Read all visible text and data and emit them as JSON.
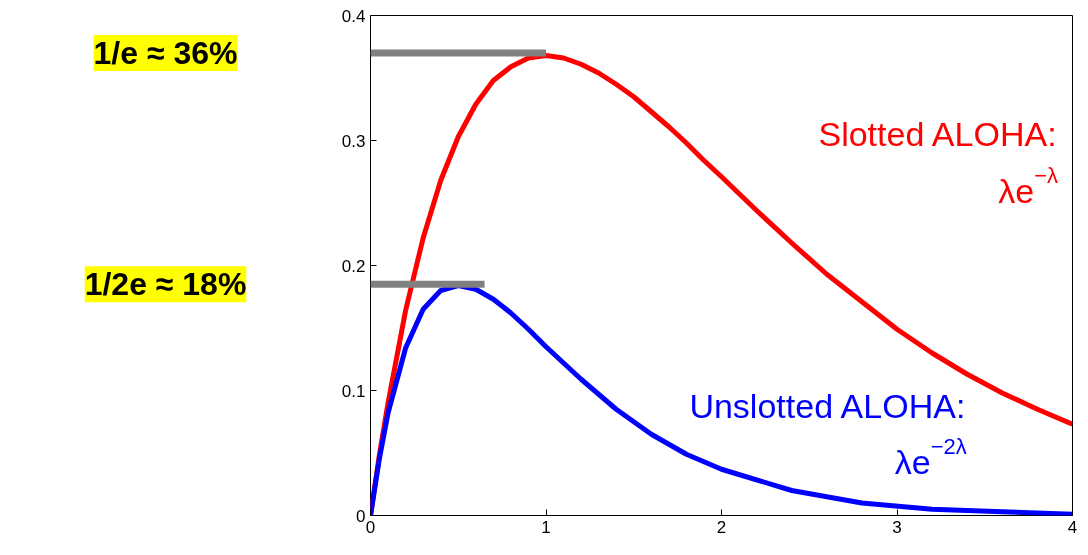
{
  "chart_data": {
    "type": "line",
    "xlim": [
      0,
      4
    ],
    "ylim": [
      0,
      0.4
    ],
    "xticks": [
      0,
      1,
      2,
      3,
      4
    ],
    "yticks": [
      0,
      0.1,
      0.2,
      0.3,
      0.4
    ],
    "grid": false,
    "marker": "none",
    "line_style": "solid",
    "annotations": [
      "1/e ≈ 36%",
      "1/2e ≈ 18%"
    ],
    "series": [
      {
        "name": "Slotted ALOHA:\nλe$^{−λ}$",
        "color": "#ff0000",
        "x": [
          0,
          0.05,
          0.1,
          0.2,
          0.3,
          0.4,
          0.5,
          0.6,
          0.7,
          0.8,
          0.9,
          1,
          1.1,
          1.2,
          1.3,
          1.4,
          1.5,
          1.6,
          1.7,
          1.8,
          1.9,
          2,
          2.2,
          2.4,
          2.6,
          2.8,
          3,
          3.2,
          3.4,
          3.6,
          3.8,
          4
        ],
        "values": [
          0,
          0.048,
          0.09,
          0.164,
          0.222,
          0.268,
          0.303,
          0.329,
          0.348,
          0.359,
          0.366,
          0.368,
          0.366,
          0.361,
          0.354,
          0.345,
          0.335,
          0.323,
          0.311,
          0.298,
          0.284,
          0.271,
          0.244,
          0.218,
          0.193,
          0.171,
          0.149,
          0.13,
          0.113,
          0.098,
          0.085,
          0.073
        ]
      },
      {
        "name": "Unslotted ALOHA:\nλe$^{−2λ}$",
        "color": "#0000ff",
        "x": [
          0,
          0.05,
          0.1,
          0.2,
          0.3,
          0.4,
          0.5,
          0.6,
          0.7,
          0.8,
          0.9,
          1,
          1.2,
          1.4,
          1.6,
          1.8,
          2,
          2.4,
          2.8,
          3.2,
          3.6,
          4
        ],
        "values": [
          0,
          0.045,
          0.082,
          0.134,
          0.165,
          0.18,
          0.184,
          0.181,
          0.173,
          0.162,
          0.149,
          0.135,
          0.109,
          0.085,
          0.065,
          0.049,
          0.037,
          0.02,
          0.01,
          0.005,
          0.003,
          0.001
        ]
      },
      {
        "color": "#808080",
        "x": [
          0,
          1
        ],
        "values": [
          0.37,
          0.37
        ]
      },
      {
        "color": "#808080",
        "x": [
          0,
          0.65
        ],
        "values": [
          0.185,
          0.185
        ]
      }
    ]
  }
}
